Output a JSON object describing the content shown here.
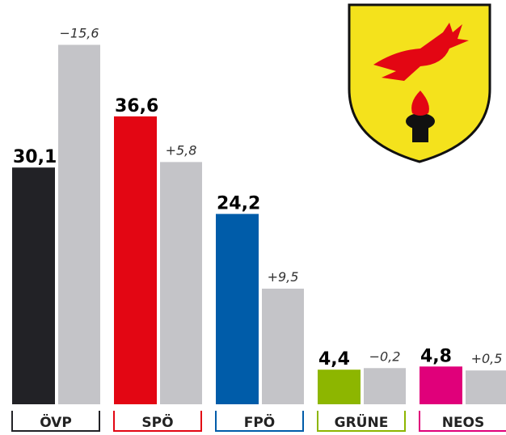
{
  "chart_data": {
    "type": "bar",
    "categories": [
      "ÖVP",
      "SPÖ",
      "FPÖ",
      "GRÜNE",
      "NEOS"
    ],
    "values": [
      30.1,
      36.6,
      24.2,
      4.4,
      4.8
    ],
    "value_labels": [
      "30,1",
      "36,6",
      "24,2",
      "4,4",
      "4,8"
    ],
    "colors": [
      "#222226",
      "#e30613",
      "#005ca9",
      "#8db600",
      "#e0007a"
    ],
    "changes": [
      -15.6,
      5.8,
      9.5,
      -0.2,
      0.5
    ],
    "change_labels": [
      "−15,6",
      "+5,8",
      "+9,5",
      "−0,2",
      "+0,5"
    ],
    "change_color": "#c4c4c8",
    "ylim": [
      0,
      51.4
    ]
  }
}
